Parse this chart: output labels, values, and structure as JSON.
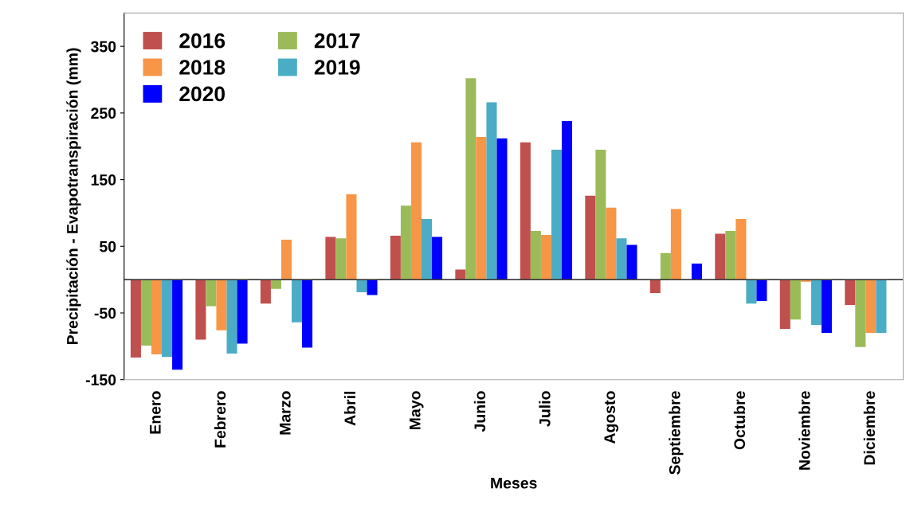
{
  "chart_data": {
    "type": "bar",
    "xlabel": "Meses",
    "ylabel": "Precipitación - Evapotranspiración (mm)",
    "categories": [
      "Enero",
      "Febrero",
      "Marzo",
      "Abril",
      "Mayo",
      "Junio",
      "Julio",
      "Agosto",
      "Septiembre",
      "Octubre",
      "Noviembre",
      "Diciembre"
    ],
    "series": [
      {
        "name": "2016",
        "color": "#c0504d",
        "values": [
          -117,
          -90,
          -36,
          64,
          66,
          15,
          206,
          126,
          -20,
          69,
          -74,
          -38
        ]
      },
      {
        "name": "2017",
        "color": "#9bbb59",
        "values": [
          -99,
          -40,
          -14,
          62,
          111,
          302,
          73,
          195,
          40,
          73,
          -60,
          -101
        ]
      },
      {
        "name": "2018",
        "color": "#f79646",
        "values": [
          -112,
          -76,
          60,
          128,
          206,
          214,
          67,
          108,
          106,
          91,
          -3,
          -80
        ]
      },
      {
        "name": "2019",
        "color": "#4bacc6",
        "values": [
          -116,
          -111,
          -64,
          -19,
          91,
          266,
          195,
          62,
          null,
          -36,
          -68,
          -80
        ]
      },
      {
        "name": "2020",
        "color": "#0000ff",
        "values": [
          -135,
          -96,
          -102,
          -23,
          64,
          212,
          238,
          52,
          24,
          -32,
          -80,
          null
        ]
      }
    ],
    "ylim": [
      -150,
      400
    ],
    "yticks": [
      -150,
      -50,
      50,
      150,
      250,
      350
    ],
    "grid": false,
    "legend": "top left"
  }
}
